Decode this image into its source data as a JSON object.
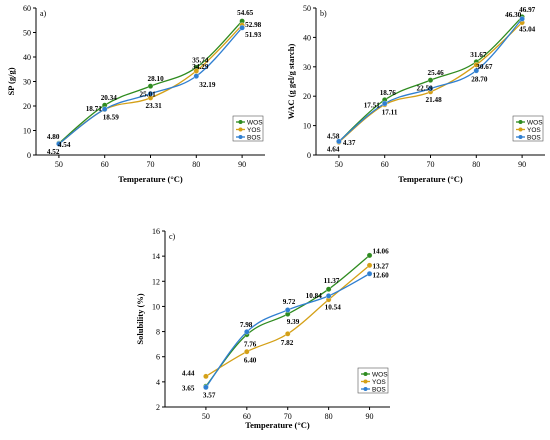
{
  "colors": {
    "WOS": "#2e8b1f",
    "YOS": "#d4a017",
    "BOS": "#2f7fd1"
  },
  "chart_data": [
    {
      "type": "line",
      "panel": "a)",
      "x": [
        50,
        60,
        70,
        80,
        90
      ],
      "xlabel": "Temperature (°C)",
      "ylabel": "SP (g/g)",
      "xlim": [
        45,
        95
      ],
      "ylim": [
        0,
        60
      ],
      "xticks": [
        50,
        60,
        70,
        80,
        90
      ],
      "yticks": [
        0,
        10,
        20,
        30,
        40,
        50,
        60
      ],
      "legend": "bottom-right",
      "series": [
        {
          "name": "WOS",
          "values": [
            4.8,
            20.34,
            28.1,
            35.74,
            54.65
          ]
        },
        {
          "name": "YOS",
          "values": [
            4.52,
            18.59,
            23.31,
            34.29,
            52.98
          ]
        },
        {
          "name": "BOS",
          "values": [
            4.54,
            18.71,
            25.01,
            32.19,
            51.93
          ]
        }
      ],
      "labels": [
        {
          "text": "4.80",
          "x": 50,
          "y": 4.8
        },
        {
          "text": "4.52",
          "x": 50,
          "y": 4.52
        },
        {
          "text": "4.54",
          "x": 50,
          "y": 4.54
        },
        {
          "text": "20.34",
          "x": 60,
          "y": 20.34
        },
        {
          "text": "18.71",
          "x": 60,
          "y": 18.71
        },
        {
          "text": "18.59",
          "x": 60,
          "y": 18.59
        },
        {
          "text": "28.10",
          "x": 70,
          "y": 28.1
        },
        {
          "text": "25.01",
          "x": 70,
          "y": 25.01
        },
        {
          "text": "23.31",
          "x": 70,
          "y": 23.31
        },
        {
          "text": "35.74",
          "x": 80,
          "y": 35.74
        },
        {
          "text": "34.29",
          "x": 80,
          "y": 34.29
        },
        {
          "text": "32.19",
          "x": 80,
          "y": 32.19
        },
        {
          "text": "54.65",
          "x": 90,
          "y": 54.65
        },
        {
          "text": "52.98",
          "x": 90,
          "y": 52.98
        },
        {
          "text": "51.93",
          "x": 90,
          "y": 51.93
        }
      ]
    },
    {
      "type": "line",
      "panel": "b)",
      "x": [
        50,
        60,
        70,
        80,
        90
      ],
      "xlabel": "Temperature (°C)",
      "ylabel": "WAC (g gel/g starch)",
      "xlim": [
        45,
        95
      ],
      "ylim": [
        0,
        50
      ],
      "xticks": [
        50,
        60,
        70,
        80,
        90
      ],
      "yticks": [
        0,
        10,
        20,
        30,
        40,
        50
      ],
      "legend": "bottom-right",
      "series": [
        {
          "name": "WOS",
          "values": [
            4.58,
            18.76,
            25.46,
            31.67,
            46.97
          ]
        },
        {
          "name": "YOS",
          "values": [
            4.37,
            17.11,
            21.48,
            30.67,
            45.04
          ]
        },
        {
          "name": "BOS",
          "values": [
            4.64,
            17.51,
            22.59,
            28.7,
            46.3
          ]
        }
      ],
      "labels": [
        {
          "text": "4.58",
          "x": 50,
          "y": 4.58
        },
        {
          "text": "4.37",
          "x": 50,
          "y": 4.37
        },
        {
          "text": "4.64",
          "x": 50,
          "y": 4.64
        },
        {
          "text": "18.76",
          "x": 60,
          "y": 18.76
        },
        {
          "text": "17.51",
          "x": 60,
          "y": 17.51
        },
        {
          "text": "17.11",
          "x": 60,
          "y": 17.11
        },
        {
          "text": "25.46",
          "x": 70,
          "y": 25.46
        },
        {
          "text": "22.59",
          "x": 70,
          "y": 22.59
        },
        {
          "text": "21.48",
          "x": 70,
          "y": 21.48
        },
        {
          "text": "31.67",
          "x": 80,
          "y": 31.67
        },
        {
          "text": "30.67",
          "x": 80,
          "y": 30.67
        },
        {
          "text": "28.70",
          "x": 80,
          "y": 28.7
        },
        {
          "text": "46.97",
          "x": 90,
          "y": 46.97
        },
        {
          "text": "46.30",
          "x": 90,
          "y": 46.3
        },
        {
          "text": "45.04",
          "x": 90,
          "y": 45.04
        }
      ]
    },
    {
      "type": "line",
      "panel": "c)",
      "x": [
        50,
        60,
        70,
        80,
        90
      ],
      "xlabel": "Temperature (°C)",
      "ylabel": "Solubility (%)",
      "xlim": [
        40,
        95
      ],
      "ylim": [
        2,
        16
      ],
      "xticks": [
        50,
        60,
        70,
        80,
        90
      ],
      "yticks": [
        2,
        4,
        6,
        8,
        10,
        12,
        14,
        16
      ],
      "legend": "bottom-right",
      "series": [
        {
          "name": "WOS",
          "values": [
            3.65,
            7.76,
            9.39,
            11.37,
            14.06
          ]
        },
        {
          "name": "YOS",
          "values": [
            4.44,
            6.4,
            7.82,
            10.54,
            13.27
          ]
        },
        {
          "name": "BOS",
          "values": [
            3.57,
            7.98,
            9.72,
            10.84,
            12.6
          ]
        }
      ],
      "labels": [
        {
          "text": "4.44",
          "x": 50,
          "y": 4.44
        },
        {
          "text": "3.65",
          "x": 50,
          "y": 3.65
        },
        {
          "text": "3.57",
          "x": 50,
          "y": 3.57
        },
        {
          "text": "7.98",
          "x": 60,
          "y": 7.98
        },
        {
          "text": "6.40",
          "x": 60,
          "y": 6.4
        },
        {
          "text": "7.76",
          "x": 60,
          "y": 7.76
        },
        {
          "text": "9.72",
          "x": 70,
          "y": 9.72
        },
        {
          "text": "9.39",
          "x": 70,
          "y": 9.39
        },
        {
          "text": "7.82",
          "x": 70,
          "y": 7.82
        },
        {
          "text": "11.37",
          "x": 80,
          "y": 11.37
        },
        {
          "text": "10.84",
          "x": 80,
          "y": 10.84
        },
        {
          "text": "10.54",
          "x": 80,
          "y": 10.54
        },
        {
          "text": "14.06",
          "x": 90,
          "y": 14.06
        },
        {
          "text": "13.27",
          "x": 90,
          "y": 13.27
        },
        {
          "text": "12.60",
          "x": 90,
          "y": 12.6
        }
      ]
    }
  ]
}
